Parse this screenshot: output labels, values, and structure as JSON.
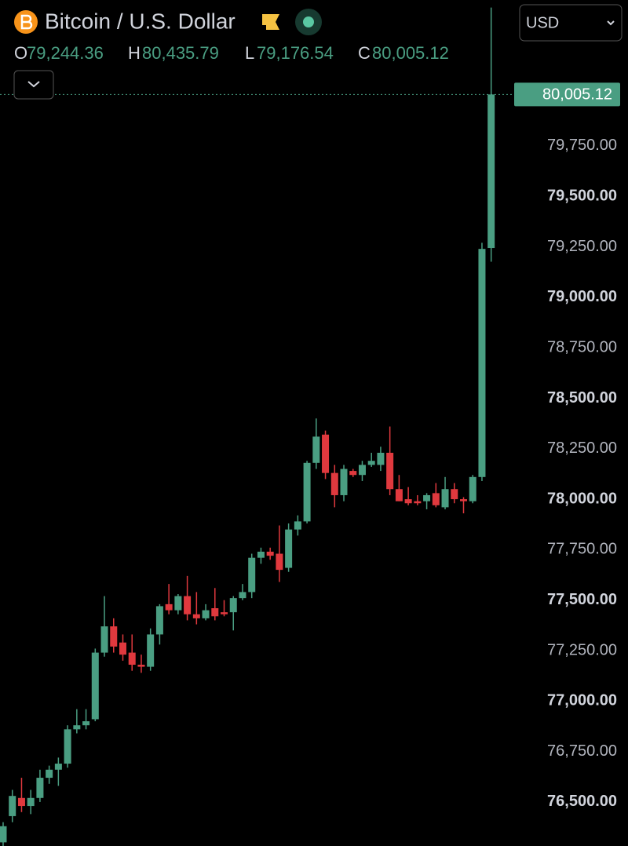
{
  "header": {
    "title": "Bitcoin / U.S. Dollar",
    "ohlc_labels": [
      "O",
      "H",
      "L",
      "C"
    ],
    "ohlc_value_labels": [
      "79,244.36",
      "80,435.79",
      "79,176.54",
      "80,005.12"
    ],
    "currency": "USD"
  },
  "chart_data": {
    "type": "candlestick",
    "up_color": "#4a9e82",
    "down_color": "#e0393e",
    "ylim": [
      76282,
      80473
    ],
    "yticks": [
      {
        "value": 79750,
        "label": "79,750.00"
      },
      {
        "value": 79500,
        "label": "79,500.00"
      },
      {
        "value": 79250,
        "label": "79,250.00"
      },
      {
        "value": 79000,
        "label": "79,000.00"
      },
      {
        "value": 78750,
        "label": "78,750.00"
      },
      {
        "value": 78500,
        "label": "78,500.00"
      },
      {
        "value": 78250,
        "label": "78,250.00"
      },
      {
        "value": 78000,
        "label": "78,000.00"
      },
      {
        "value": 77750,
        "label": "77,750.00"
      },
      {
        "value": 77500,
        "label": "77,500.00"
      },
      {
        "value": 77250,
        "label": "77,250.00"
      },
      {
        "value": 77000,
        "label": "77,000.00"
      },
      {
        "value": 76750,
        "label": "76,750.00"
      },
      {
        "value": 76500,
        "label": "76,500.00"
      }
    ],
    "last_price": 80005.12,
    "last_price_label": "80,005.12",
    "open": [
      76300,
      76430,
      76520,
      76480,
      76520,
      76620,
      76660,
      76690,
      76860,
      76880,
      76910,
      77240,
      77370,
      77290,
      77240,
      77180,
      77170,
      77330,
      77480,
      77450,
      77520,
      77430,
      77410,
      77460,
      77440,
      77440,
      77510,
      77540,
      77710,
      77740,
      77730,
      77660,
      77850,
      77890,
      78180,
      78320,
      78130,
      78020,
      78140,
      78120,
      78170,
      78170,
      78230,
      78050,
      78000,
      77990,
      77990,
      78030,
      77960,
      78050,
      78000,
      77990,
      78110,
      79244.36
    ],
    "high": [
      76400,
      76560,
      76620,
      76560,
      76660,
      76680,
      76720,
      76880,
      76960,
      76960,
      77260,
      77520,
      77410,
      77330,
      77330,
      77230,
      77360,
      77480,
      77580,
      77530,
      77620,
      77540,
      77480,
      77560,
      77500,
      77520,
      77580,
      77730,
      77760,
      77760,
      77870,
      77880,
      77920,
      78190,
      78400,
      78340,
      78170,
      78170,
      78150,
      78190,
      78230,
      78260,
      78360,
      78120,
      78060,
      78020,
      78030,
      78080,
      78110,
      78080,
      78010,
      78120,
      79270,
      80435.79
    ],
    "low": [
      76280,
      76400,
      76450,
      76440,
      76500,
      76590,
      76580,
      76670,
      76840,
      76860,
      76900,
      77220,
      77240,
      77200,
      77150,
      77140,
      77150,
      77280,
      77430,
      77430,
      77400,
      77380,
      77400,
      77400,
      77420,
      77350,
      77500,
      77510,
      77680,
      77700,
      77590,
      77640,
      77820,
      77880,
      78150,
      78100,
      77960,
      77990,
      78110,
      78090,
      78160,
      78140,
      78020,
      77990,
      77970,
      77970,
      77950,
      77960,
      77950,
      77980,
      77930,
      77980,
      78090,
      79176.54
    ],
    "close": [
      76380,
      76530,
      76480,
      76520,
      76620,
      76660,
      76690,
      76860,
      76880,
      76900,
      77240,
      77370,
      77270,
      77230,
      77180,
      77170,
      77330,
      77470,
      77450,
      77520,
      77430,
      77410,
      77450,
      77420,
      77430,
      77510,
      77540,
      77710,
      77740,
      77720,
      77650,
      77850,
      77890,
      78180,
      78310,
      78130,
      78020,
      78150,
      78120,
      78170,
      78190,
      78230,
      78050,
      77990,
      77980,
      77980,
      78020,
      77970,
      78050,
      78000,
      77990,
      78110,
      79240,
      80005.12
    ]
  }
}
